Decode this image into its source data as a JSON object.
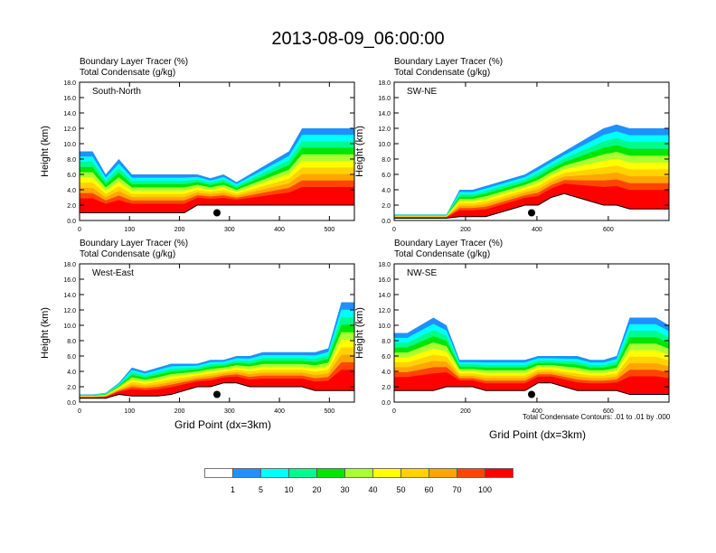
{
  "title": "2013-08-09_06:00:00",
  "panel_titles": [
    "Boundary Layer Tracer   (%)",
    "Total Condensate   (g/kg)"
  ],
  "xlabel": "Grid Point (dx=3km)",
  "ylabel": "Height (km)",
  "note": "Total Condensate Contours: .01 to .01 by .000",
  "chart_data": [
    {
      "type": "heatmap",
      "name": "South-North",
      "xlim": [
        0,
        550
      ],
      "ylim": [
        0,
        18
      ],
      "xticks": [
        0,
        100,
        200,
        300,
        400,
        500
      ],
      "yticks": [
        0,
        2,
        4,
        6,
        8,
        10,
        12,
        14,
        16,
        18
      ],
      "marker": {
        "x": 275,
        "y": 1.0
      },
      "top_km": [
        9,
        9,
        6,
        8,
        6,
        6,
        6,
        6,
        6,
        6,
        5.5,
        6,
        5,
        6,
        7,
        8,
        9,
        12,
        12,
        12,
        12,
        12
      ],
      "base_km": [
        1,
        1,
        1,
        1,
        1,
        1,
        1,
        1,
        1,
        2,
        2,
        2,
        2,
        2,
        2,
        2,
        2,
        2,
        2,
        2,
        2,
        2
      ]
    },
    {
      "type": "heatmap",
      "name": "SW-NE",
      "xlim": [
        0,
        770
      ],
      "ylim": [
        0,
        18
      ],
      "xticks": [
        0,
        200,
        400,
        600
      ],
      "yticks": [
        0,
        2,
        4,
        6,
        8,
        10,
        12,
        14,
        16,
        18
      ],
      "marker": {
        "x": 385,
        "y": 1.0
      },
      "top_km": [
        0.8,
        0.8,
        0.8,
        0.8,
        0.8,
        4,
        4,
        4.5,
        5,
        5.5,
        6,
        7,
        8,
        9,
        10,
        11,
        12,
        12.5,
        12,
        12,
        12,
        12
      ],
      "base_km": [
        0.3,
        0.3,
        0.3,
        0.3,
        0.3,
        0.5,
        0.5,
        0.5,
        1,
        1.5,
        2,
        2,
        3,
        3.5,
        3,
        2.5,
        2,
        2,
        1.5,
        1.5,
        1.5,
        1.5
      ]
    },
    {
      "type": "heatmap",
      "name": "West-East",
      "xlim": [
        0,
        550
      ],
      "ylim": [
        0,
        18
      ],
      "xticks": [
        0,
        100,
        200,
        300,
        400,
        500
      ],
      "yticks": [
        0,
        2,
        4,
        6,
        8,
        10,
        12,
        14,
        16,
        18
      ],
      "marker": {
        "x": 275,
        "y": 1.0
      },
      "top_km": [
        1,
        1,
        1.2,
        2.5,
        4.5,
        4,
        4.5,
        5,
        5,
        5,
        5.5,
        5.5,
        6,
        6,
        6.5,
        6.5,
        6.5,
        6.5,
        6.5,
        7,
        13,
        13
      ],
      "base_km": [
        0.5,
        0.5,
        0.5,
        1,
        0.8,
        0.8,
        0.8,
        1,
        1.5,
        2,
        2,
        2.5,
        2.5,
        2,
        2,
        2,
        2,
        2,
        1.5,
        1.5,
        1.5,
        1.5
      ]
    },
    {
      "type": "heatmap",
      "name": "NW-SE",
      "xlim": [
        0,
        770
      ],
      "ylim": [
        0,
        18
      ],
      "xticks": [
        0,
        200,
        400,
        600
      ],
      "yticks": [
        0,
        2,
        4,
        6,
        8,
        10,
        12,
        14,
        16,
        18
      ],
      "marker": {
        "x": 385,
        "y": 1.0
      },
      "top_km": [
        9,
        9,
        10,
        11,
        10,
        5.5,
        5.5,
        5.5,
        5.5,
        5.5,
        5.5,
        6,
        6,
        6,
        6,
        5.5,
        5.5,
        6,
        11,
        11,
        11,
        10
      ],
      "base_km": [
        1.5,
        1.5,
        1.5,
        1.5,
        2,
        2,
        2,
        1.5,
        1.5,
        1.5,
        1.5,
        2.5,
        2.5,
        2,
        1.5,
        1.5,
        1.5,
        1.5,
        1,
        1,
        1,
        1
      ]
    }
  ],
  "colorbar": {
    "colors": [
      "#ffffff",
      "#1e90ff",
      "#00ffff",
      "#00fa8c",
      "#00e600",
      "#aaff32",
      "#ffff00",
      "#ffd200",
      "#ffa500",
      "#ff4500",
      "#ff0000"
    ],
    "labels": [
      "1",
      "5",
      "10",
      "20",
      "30",
      "40",
      "50",
      "60",
      "70",
      "100"
    ]
  }
}
